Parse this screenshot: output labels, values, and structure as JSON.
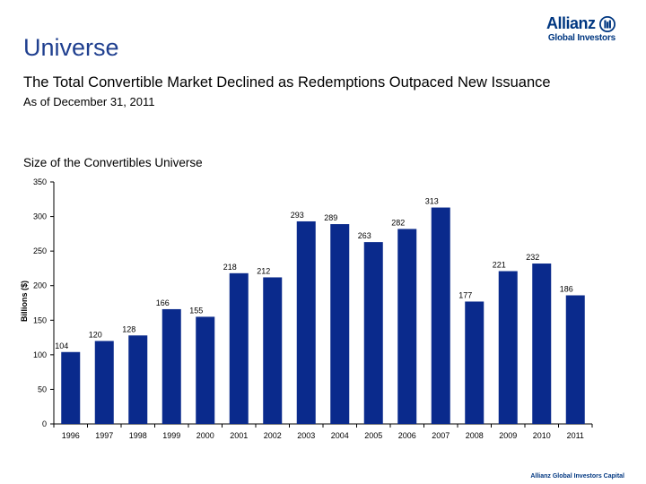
{
  "header": {
    "title": "Universe",
    "headline": "The Total Convertible Market Declined as Redemptions Outpaced New Issuance",
    "as_of": "As of December 31, 2011"
  },
  "logo": {
    "brand": "Allianz",
    "sub": "Global Investors",
    "icon": "allianz-eagle-icon"
  },
  "footer": {
    "text": "Allianz Global Investors Capital"
  },
  "colors": {
    "bar": "#0a2a8c",
    "title": "#1f3f8f",
    "brand": "#003781"
  },
  "chart_data": {
    "type": "bar",
    "title": "Size of the Convertibles Universe",
    "xlabel": "",
    "ylabel": "Billions ($)",
    "ylim": [
      0,
      350
    ],
    "yticks": [
      0,
      50,
      100,
      150,
      200,
      250,
      300,
      350
    ],
    "grid": false,
    "categories": [
      "1996",
      "1997",
      "1998",
      "1999",
      "2000",
      "2001",
      "2002",
      "2003",
      "2004",
      "2005",
      "2006",
      "2007",
      "2008",
      "2009",
      "2010",
      "2011"
    ],
    "values": [
      104,
      120,
      128,
      166,
      155,
      218,
      212,
      293,
      289,
      263,
      282,
      313,
      177,
      221,
      232,
      186
    ]
  }
}
